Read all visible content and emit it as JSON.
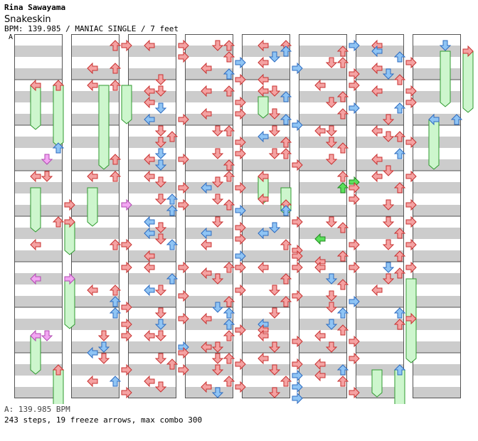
{
  "header": {
    "artist": "Rina Sawayama",
    "title": "Snakeskin",
    "meta": "BPM: 139.985 / MANIAC SINGLE / 7 feet",
    "bpm_marker": "A"
  },
  "footer": {
    "bpm_line": "A: 139.985 BPM",
    "summary": "243 steps, 19 freeze arrows, max combo 300"
  },
  "colors": {
    "quarter": "#f4a2a2",
    "quarter_stroke": "#c8302f",
    "eighth": "#8fc4f4",
    "eighth_stroke": "#2c6bc1",
    "sixteenth": "#f2a6f2",
    "sixteenth_stroke": "#b048b0",
    "green": "#5be05b",
    "green_stroke": "#21891f",
    "freeze": "#cdf6cd",
    "freeze_stroke": "#2f9a2f",
    "band": "#cccccc"
  },
  "chart_summary": {
    "columns": 8,
    "measures_per_column": 8,
    "lanes": [
      "left",
      "down",
      "up",
      "right"
    ],
    "steps": 243,
    "freeze_arrows": 19,
    "max_combo": 300,
    "bpm": 139.985
  }
}
